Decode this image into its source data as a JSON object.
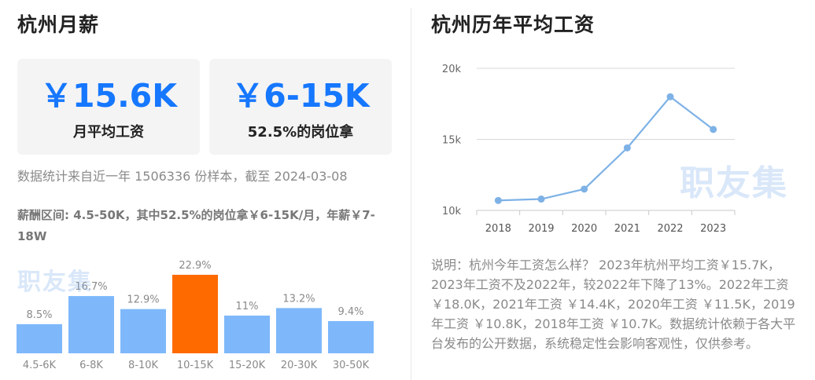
{
  "left": {
    "title": "杭州月薪",
    "cards": [
      {
        "value": "￥15.6K",
        "caption": "月平均工资"
      },
      {
        "value": "￥6-15K",
        "caption": "52.5%的岗位拿"
      }
    ],
    "note": "数据统计来自近一年 1506336 份样本，截至 2024-03-08",
    "range_text": "薪酬区间: 4.5-50K，其中52.5%的岗位拿￥6-15K/月，年薪￥7-18W",
    "watermark": "职友集"
  },
  "right": {
    "title": "杭州历年平均工资",
    "watermark": "职友集",
    "description": "说明：杭州今年工资怎么样？ 2023年杭州平均工资￥15.7K，2023年工资不及2022年，较2022年下降了13%。2022年工资 ￥18.0K，2021年工资 ￥14.4K，2020年工资 ￥11.5K，2019年工资 ￥10.8K，2018年工资 ￥10.7K。数据统计依赖于各大平台发布的公开数据，系统稳定性会影响客观性，仅供参考。"
  },
  "colors": {
    "bar": "#7eb8fb",
    "highlight": "#ff6a00",
    "line": "#7eb2e6",
    "accent": "#1677ff"
  },
  "chart_data": [
    {
      "type": "bar",
      "categories": [
        "4.5-6K",
        "6-8K",
        "8-10K",
        "10-15K",
        "15-20K",
        "20-30K",
        "30-50K"
      ],
      "values": [
        8.5,
        16.7,
        12.9,
        22.9,
        11,
        13.2,
        9.4
      ],
      "labels": [
        "8.5%",
        "16.7%",
        "12.9%",
        "22.9%",
        "11%",
        "13.2%",
        "9.4%"
      ],
      "highlight_index": 3,
      "ylim": [
        0,
        22.9
      ]
    },
    {
      "type": "line",
      "x": [
        "2018",
        "2019",
        "2020",
        "2021",
        "2022",
        "2023"
      ],
      "values": [
        10.7,
        10.8,
        11.5,
        14.4,
        18.0,
        15.7
      ],
      "yticks": [
        10,
        15,
        20
      ],
      "ytick_labels": [
        "10k",
        "15k",
        "20k"
      ],
      "ylim": [
        10,
        20
      ],
      "grid": true
    }
  ]
}
